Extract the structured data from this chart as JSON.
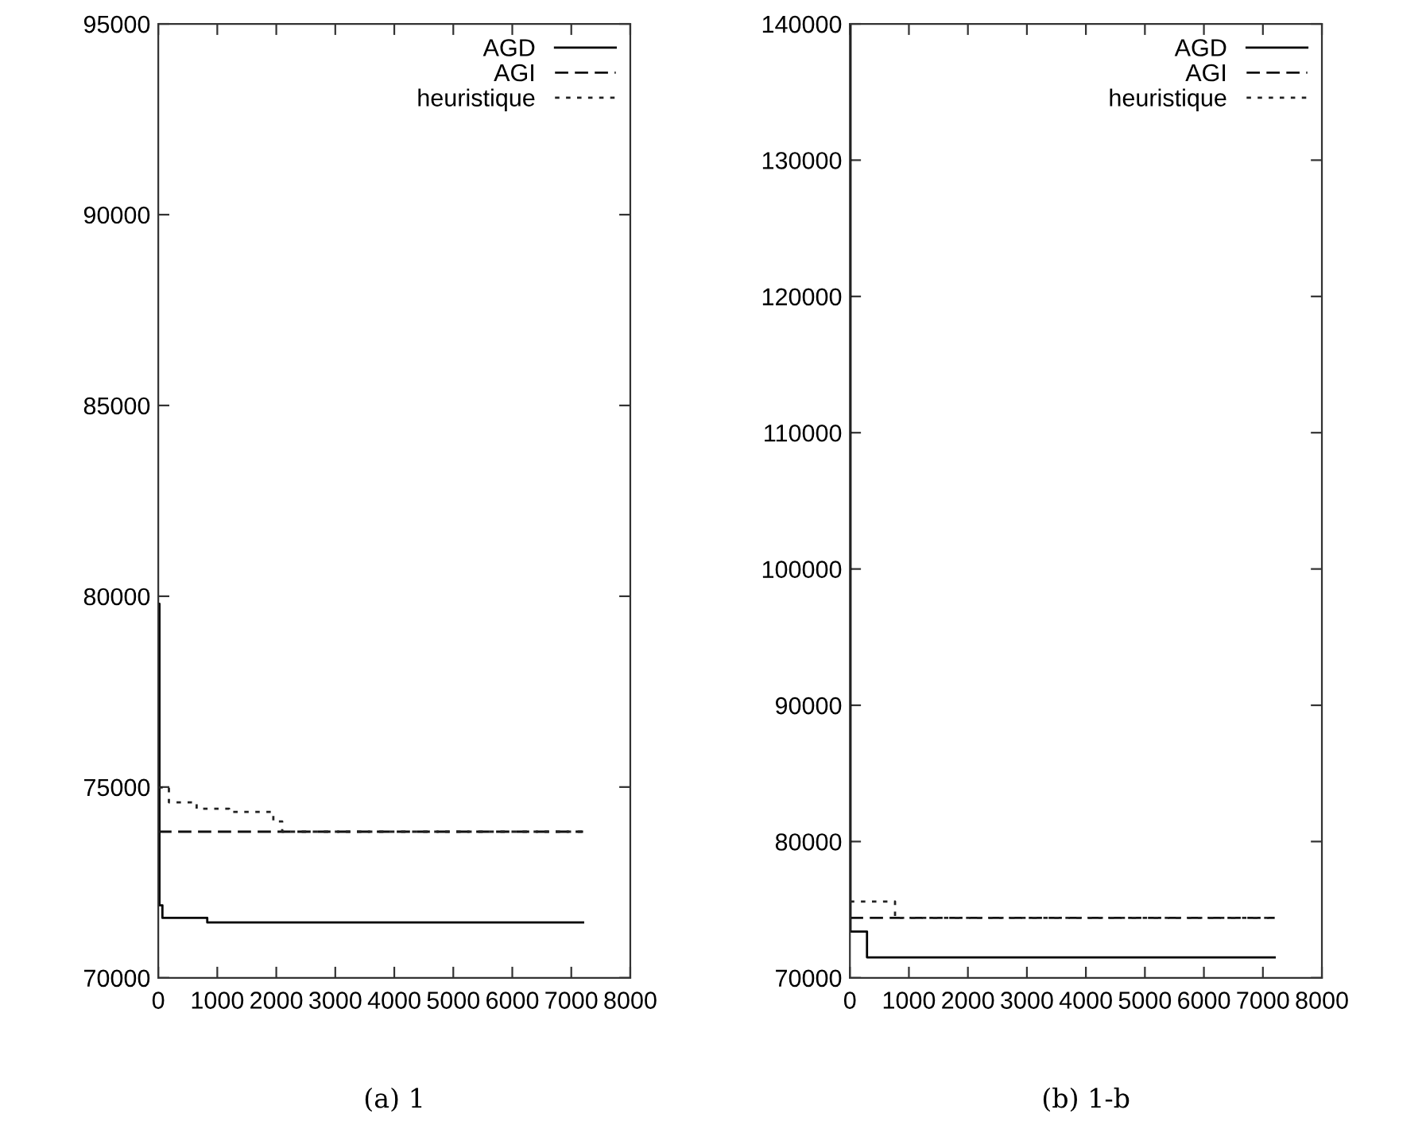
{
  "chart_data": [
    {
      "type": "step",
      "title": "(a) 1",
      "xlim": [
        0,
        8000
      ],
      "xticks": [
        0,
        1000,
        2000,
        3000,
        4000,
        5000,
        6000,
        7000,
        8000
      ],
      "ylim": [
        70000,
        95000
      ],
      "yticks": [
        70000,
        75000,
        80000,
        85000,
        90000,
        95000
      ],
      "legend": "top right",
      "series": [
        {
          "name": "AGD",
          "color": "#000000",
          "line_style": "solid",
          "x": [
            0,
            20,
            70,
            830,
            7200
          ],
          "values": [
            79800,
            71900,
            71570,
            71450,
            71450
          ]
        },
        {
          "name": "AGI",
          "color": "#111111",
          "line_style": "dashed",
          "x": [
            0,
            7200
          ],
          "values": [
            73830,
            73830
          ]
        },
        {
          "name": "heuristique",
          "color": "#222222",
          "line_style": "dotted",
          "x": [
            0,
            180,
            650,
            1200,
            1950,
            2100,
            7200
          ],
          "values": [
            74990,
            74600,
            74430,
            74350,
            74100,
            73830,
            73830
          ]
        }
      ]
    },
    {
      "type": "step",
      "title": "(b) 1-b",
      "xlim": [
        0,
        8000
      ],
      "xticks": [
        0,
        1000,
        2000,
        3000,
        4000,
        5000,
        6000,
        7000,
        8000
      ],
      "ylim": [
        70000,
        140000
      ],
      "yticks": [
        70000,
        80000,
        90000,
        100000,
        110000,
        120000,
        130000,
        140000
      ],
      "legend": "top right",
      "series": [
        {
          "name": "AGD",
          "color": "#000000",
          "line_style": "solid",
          "x": [
            0,
            10,
            290,
            7200
          ],
          "values": [
            140000,
            73400,
            71500,
            71500
          ]
        },
        {
          "name": "AGI",
          "color": "#111111",
          "line_style": "dashed",
          "x": [
            0,
            7200
          ],
          "values": [
            74400,
            74400
          ]
        },
        {
          "name": "heuristique",
          "color": "#222222",
          "line_style": "dotted",
          "x": [
            0,
            765,
            7200
          ],
          "values": [
            75600,
            74400,
            74400
          ]
        }
      ]
    }
  ]
}
